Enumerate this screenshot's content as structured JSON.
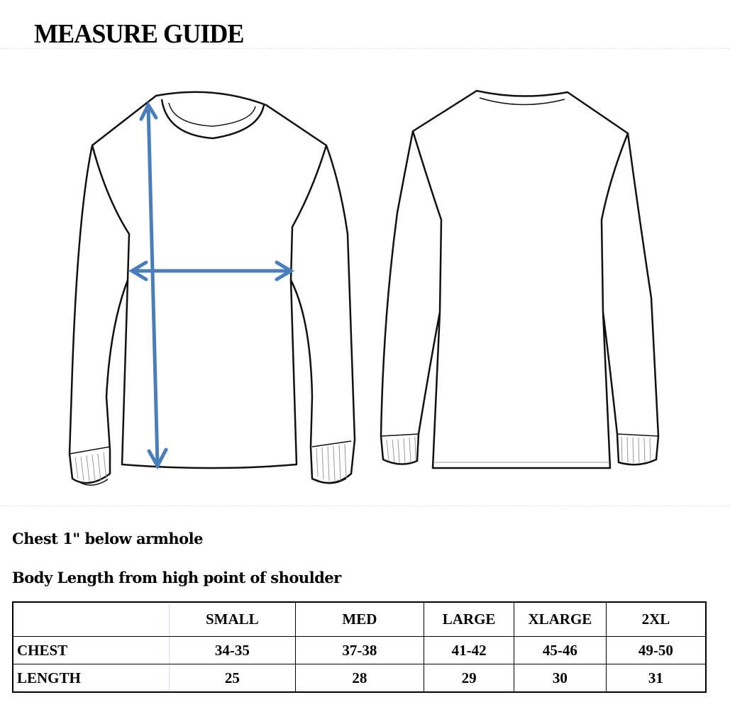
{
  "title": "MEASURE GUIDE",
  "notes": [
    "Chest 1\" below armhole",
    "Body Length from high point of shoulder"
  ],
  "colors": {
    "arrow": "#4a7ebb",
    "outline": "#111111"
  },
  "illustrations": [
    "sweater-front",
    "sweater-back"
  ],
  "table": {
    "headers": [
      "",
      "SMALL",
      "MED",
      "LARGE",
      "XLARGE",
      "2XL"
    ],
    "rows": [
      {
        "label": "CHEST",
        "values": [
          "34-35",
          "37-38",
          "41-42",
          "45-46",
          "49-50"
        ]
      },
      {
        "label": "LENGTH",
        "values": [
          "25",
          "28",
          "29",
          "30",
          "31"
        ]
      }
    ]
  }
}
